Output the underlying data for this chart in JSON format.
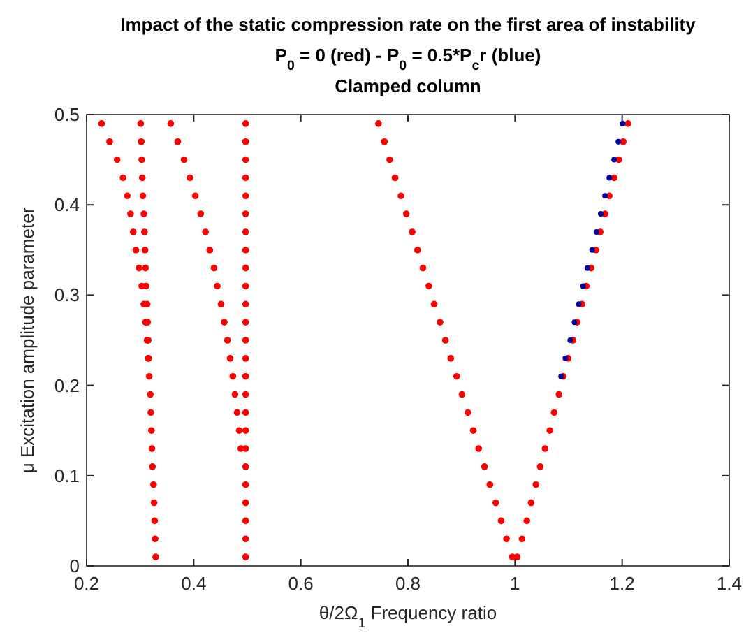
{
  "chart_data": {
    "type": "scatter",
    "title": "Impact of the static compression rate on the first area of instability",
    "subtitle": "P$_{0}$ = 0 (red) - P$_{0}$ = 0.5*P$_{c}$r (blue)",
    "annotations": [
      "Clamped column"
    ],
    "xlabel": "θ/2Ω$_{1}$ Frequency ratio",
    "ylabel": "μ Excitation amplitude parameter",
    "xlim": [
      0.2,
      1.4
    ],
    "xticks": [
      0.2,
      0.4,
      0.6,
      0.8,
      1,
      1.2,
      1.4
    ],
    "ylim": [
      0,
      0.5
    ],
    "yticks": [
      0,
      0.1,
      0.2,
      0.3,
      0.4,
      0.5
    ],
    "grid": false,
    "marker": "circle",
    "series": [
      {
        "color": "#ff0000",
        "x": [
          0.329,
          0.328,
          0.327,
          0.326,
          0.325,
          0.323,
          0.322,
          0.321,
          0.32,
          0.319,
          0.317,
          0.316,
          0.315,
          0.314,
          0.313,
          0.311,
          0.31,
          0.309,
          0.308,
          0.307,
          0.305,
          0.304,
          0.303,
          0.302,
          0.301,
          0.315,
          0.313,
          0.31,
          0.307,
          0.303,
          0.298,
          0.292,
          0.287,
          0.282,
          0.276,
          0.268,
          0.257,
          0.243,
          0.228,
          0.497,
          0.497,
          0.497,
          0.497,
          0.497,
          0.497,
          0.497,
          0.497,
          0.497,
          0.497,
          0.497,
          0.497,
          0.497,
          0.497,
          0.497,
          0.497,
          0.497,
          0.497,
          0.497,
          0.497,
          0.497,
          0.497,
          0.497,
          0.497,
          0.497,
          0.488,
          0.485,
          0.481,
          0.477,
          0.473,
          0.468,
          0.463,
          0.457,
          0.451,
          0.444,
          0.438,
          0.43,
          0.422,
          0.413,
          0.403,
          0.393,
          0.382,
          0.37,
          0.357,
          0.995,
          0.984,
          0.974,
          0.964,
          0.953,
          0.943,
          0.932,
          0.922,
          0.912,
          0.901,
          0.891,
          0.88,
          0.87,
          0.86,
          0.849,
          0.839,
          0.828,
          0.818,
          0.808,
          0.797,
          0.787,
          0.776,
          0.766,
          0.756,
          0.745,
          1.004,
          1.013,
          1.022,
          1.03,
          1.039,
          1.047,
          1.056,
          1.065,
          1.073,
          1.082,
          1.09,
          1.099,
          1.108,
          1.116,
          1.125,
          1.133,
          1.142,
          1.151,
          1.159,
          1.168,
          1.176,
          1.185,
          1.194,
          1.202,
          1.211
        ],
        "values": [
          0.01,
          0.03,
          0.05,
          0.07,
          0.09,
          0.11,
          0.13,
          0.15,
          0.17,
          0.19,
          0.21,
          0.23,
          0.25,
          0.27,
          0.29,
          0.31,
          0.33,
          0.35,
          0.37,
          0.39,
          0.41,
          0.43,
          0.45,
          0.47,
          0.49,
          0.23,
          0.25,
          0.27,
          0.29,
          0.31,
          0.33,
          0.35,
          0.37,
          0.39,
          0.41,
          0.43,
          0.45,
          0.47,
          0.49,
          0.01,
          0.03,
          0.05,
          0.07,
          0.09,
          0.11,
          0.13,
          0.15,
          0.17,
          0.19,
          0.21,
          0.23,
          0.25,
          0.27,
          0.29,
          0.31,
          0.33,
          0.35,
          0.37,
          0.39,
          0.41,
          0.43,
          0.45,
          0.47,
          0.49,
          0.13,
          0.15,
          0.17,
          0.19,
          0.21,
          0.23,
          0.25,
          0.27,
          0.29,
          0.31,
          0.33,
          0.35,
          0.37,
          0.39,
          0.41,
          0.43,
          0.45,
          0.47,
          0.49,
          0.01,
          0.03,
          0.05,
          0.07,
          0.09,
          0.11,
          0.13,
          0.15,
          0.17,
          0.19,
          0.21,
          0.23,
          0.25,
          0.27,
          0.29,
          0.31,
          0.33,
          0.35,
          0.37,
          0.39,
          0.41,
          0.43,
          0.45,
          0.47,
          0.49,
          0.01,
          0.03,
          0.05,
          0.07,
          0.09,
          0.11,
          0.13,
          0.15,
          0.17,
          0.19,
          0.21,
          0.23,
          0.25,
          0.27,
          0.29,
          0.31,
          0.33,
          0.35,
          0.37,
          0.39,
          0.41,
          0.43,
          0.45,
          0.47,
          0.49
        ]
      },
      {
        "color": "#0000a0",
        "x": [
          1.086,
          1.094,
          1.103,
          1.111,
          1.119,
          1.127,
          1.135,
          1.144,
          1.152,
          1.16,
          1.168,
          1.176,
          1.185,
          1.193,
          1.201
        ],
        "values": [
          0.21,
          0.23,
          0.25,
          0.27,
          0.29,
          0.31,
          0.33,
          0.35,
          0.37,
          0.39,
          0.41,
          0.43,
          0.45,
          0.47,
          0.49
        ]
      }
    ]
  }
}
